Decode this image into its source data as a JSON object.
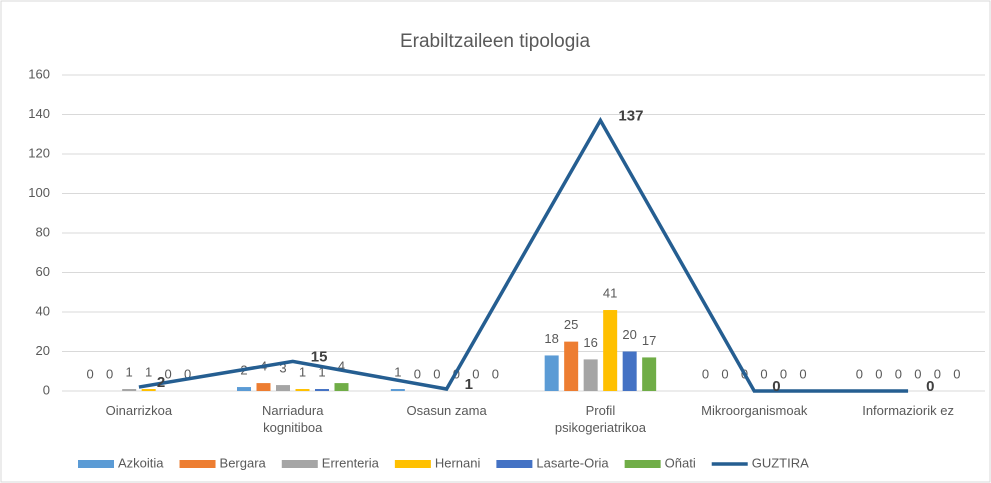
{
  "chart_data": {
    "type": "bar_line",
    "title": "Erabiltzaileen tipologia",
    "categories": [
      "Oinarrizkoa",
      "Narriadura kognitiboa",
      "Osasun zama",
      "Profil psikogeriatrikoa",
      "Mikroorganismoak",
      "Informaziorik ez"
    ],
    "series": [
      {
        "name": "Azkoitia",
        "color": "#5b9bd5",
        "values": [
          0,
          2,
          1,
          18,
          0,
          0
        ]
      },
      {
        "name": "Bergara",
        "color": "#ed7d31",
        "values": [
          0,
          4,
          0,
          25,
          0,
          0
        ]
      },
      {
        "name": "Errenteria",
        "color": "#a5a5a5",
        "values": [
          1,
          3,
          0,
          16,
          0,
          0
        ]
      },
      {
        "name": "Hernani",
        "color": "#ffc000",
        "values": [
          1,
          1,
          0,
          41,
          0,
          0
        ]
      },
      {
        "name": "Lasarte-Oria",
        "color": "#4472c4",
        "values": [
          0,
          1,
          0,
          20,
          0,
          0
        ]
      },
      {
        "name": "Oñati",
        "color": "#70ad47",
        "values": [
          0,
          4,
          0,
          17,
          0,
          0
        ]
      },
      {
        "name": "GUZTIRA",
        "color": "#255e91",
        "type": "line",
        "values": [
          2,
          15,
          1,
          137,
          0,
          0
        ]
      }
    ],
    "ylim": [
      0,
      160
    ],
    "yticks": [
      0,
      20,
      40,
      60,
      80,
      100,
      120,
      140,
      160
    ],
    "grid": true,
    "legend": "bottom"
  }
}
